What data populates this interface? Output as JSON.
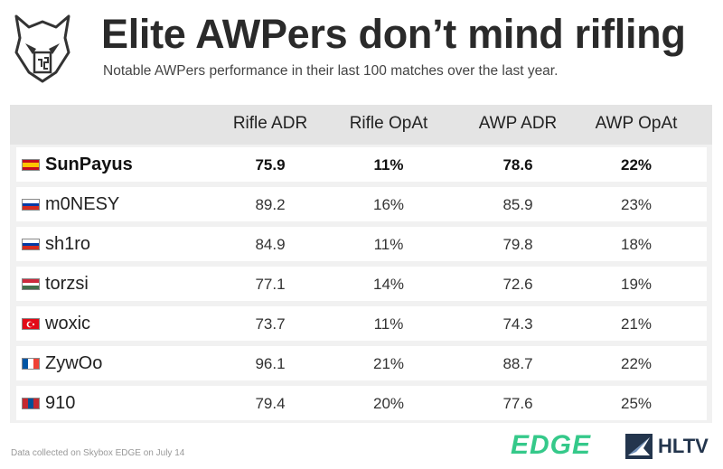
{
  "title": "Elite AWPers don’t mind rifling",
  "subtitle": "Notable AWPers performance in their last 100 matches over the last year.",
  "logo_icon": "g2-esports-logo",
  "chart_data": {
    "type": "table",
    "columns": [
      "Rifle ADR",
      "Rifle OpAt",
      "AWP ADR",
      "AWP OpAt"
    ],
    "highlight_row": 0,
    "rows": [
      {
        "player": "SunPayus",
        "flag": "spain-flag",
        "rifle_adr": "75.9",
        "rifle_opat": "11%",
        "awp_adr": "78.6",
        "awp_opat": "22%"
      },
      {
        "player": "m0NESY",
        "flag": "russia-flag",
        "rifle_adr": "89.2",
        "rifle_opat": "16%",
        "awp_adr": "85.9",
        "awp_opat": "23%"
      },
      {
        "player": "sh1ro",
        "flag": "russia-flag",
        "rifle_adr": "84.9",
        "rifle_opat": "11%",
        "awp_adr": "79.8",
        "awp_opat": "18%"
      },
      {
        "player": "torzsi",
        "flag": "hungary-flag",
        "rifle_adr": "77.1",
        "rifle_opat": "14%",
        "awp_adr": "72.6",
        "awp_opat": "19%"
      },
      {
        "player": "woxic",
        "flag": "turkey-flag",
        "rifle_adr": "73.7",
        "rifle_opat": "11%",
        "awp_adr": "74.3",
        "awp_opat": "21%"
      },
      {
        "player": "ZywOo",
        "flag": "france-flag",
        "rifle_adr": "96.1",
        "rifle_opat": "21%",
        "awp_adr": "88.7",
        "awp_opat": "22%"
      },
      {
        "player": "910",
        "flag": "mongolia-flag",
        "rifle_adr": "79.4",
        "rifle_opat": "20%",
        "awp_adr": "77.6",
        "awp_opat": "25%"
      }
    ]
  },
  "footer": {
    "note": "Data collected on Skybox EDGE on July 14",
    "edge_logo": "EDGE",
    "hltv_logo": "HLTV",
    "hltv_icon": "hltv-logo-icon"
  },
  "colors": {
    "header_bg": "#e4e4e4",
    "table_bg": "#f1f1f1",
    "edge_green": "#35c98a",
    "hltv_navy": "#23354d"
  }
}
